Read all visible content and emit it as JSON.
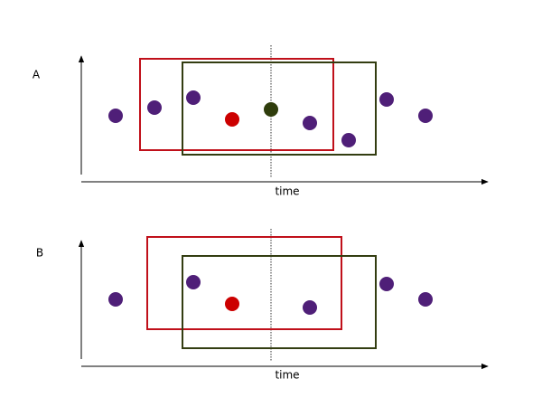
{
  "panels": [
    {
      "label": "A",
      "axis_label": "time"
    },
    {
      "label": "B",
      "axis_label": "time"
    }
  ]
}
